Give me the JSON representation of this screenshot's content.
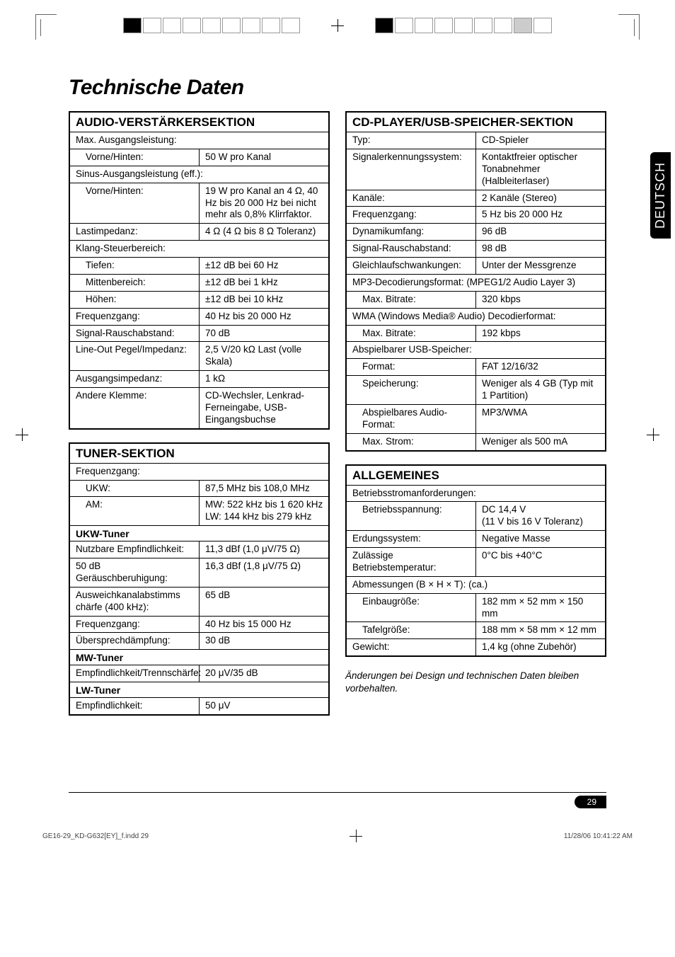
{
  "title": "Technische Daten",
  "side_tab": "DEUTSCH",
  "page_number": "29",
  "print_footer_left": "GE16-29_KD-G632[EY]_f.indd   29",
  "print_footer_right": "11/28/06   10:41:22 AM",
  "footnote": "Änderungen bei Design und technischen Daten bleiben vorbehalten.",
  "audio": {
    "header": "AUDIO-VERSTÄRKERSEKTION",
    "rows": [
      {
        "full": "Max. Ausgangsleistung:"
      },
      {
        "l": "Vorne/Hinten:",
        "v": "50 W pro Kanal",
        "indent": true
      },
      {
        "full": "Sinus-Ausgangsleistung (eff.):"
      },
      {
        "l": "Vorne/Hinten:",
        "v": "19 W pro Kanal an 4 Ω, 40 Hz bis 20 000 Hz bei nicht mehr als 0,8% Klirrfaktor.",
        "indent": true
      },
      {
        "l": "Lastimpedanz:",
        "v": "4 Ω (4 Ω bis 8 Ω Toleranz)"
      },
      {
        "full": "Klang-Steuerbereich:"
      },
      {
        "l": "Tiefen:",
        "v": "±12 dB bei 60 Hz",
        "indent": true
      },
      {
        "l": "Mittenbereich:",
        "v": "±12 dB bei 1 kHz",
        "indent": true
      },
      {
        "l": "Höhen:",
        "v": "±12 dB bei 10 kHz",
        "indent": true
      },
      {
        "l": "Frequenzgang:",
        "v": "40 Hz bis 20 000 Hz"
      },
      {
        "l": "Signal-Rauschabstand:",
        "v": "70 dB"
      },
      {
        "l": "Line-Out Pegel/Impedanz:",
        "v": "2,5 V/20 kΩ Last (volle Skala)"
      },
      {
        "l": "Ausgangsimpedanz:",
        "v": "1 kΩ"
      },
      {
        "l": "Andere Klemme:",
        "v": "CD-Wechsler, Lenkrad-Ferneingabe, USB-Eingangsbuchse"
      }
    ]
  },
  "tuner": {
    "header": "TUNER-SEKTION",
    "r1": {
      "full": "Frequenzgang:"
    },
    "r2": {
      "l": "UKW:",
      "v": "87,5 MHz bis 108,0 MHz"
    },
    "r3": {
      "l": "AM:",
      "v": "MW: 522 kHz bis 1 620 kHz\nLW: 144 kHz bis 279 kHz"
    },
    "sub1": "UKW-Tuner",
    "r4": {
      "l": "Nutzbare Empfindlichkeit:",
      "v": "11,3 dBf (1,0 μV/75 Ω)"
    },
    "r5": {
      "l": "50 dB Geräuschberuhigung:",
      "v": "16,3 dBf (1,8 μV/75 Ω)"
    },
    "r6": {
      "l": "Ausweichkanalabstimms chärfe (400 kHz):",
      "v": "65 dB"
    },
    "r7": {
      "l": "Frequenzgang:",
      "v": "40 Hz bis 15 000 Hz"
    },
    "r8": {
      "l": "Übersprechdämpfung:",
      "v": "30 dB"
    },
    "sub2": "MW-Tuner",
    "r9": {
      "l": "Empfindlichkeit/Trennschärfe:",
      "v": "20 μV/35 dB"
    },
    "sub3": "LW-Tuner",
    "r10": {
      "l": "Empfindlichkeit:",
      "v": "50 μV"
    }
  },
  "cd": {
    "header": "CD-PLAYER/USB-SPEICHER-SEKTION",
    "rows": [
      {
        "l": "Typ:",
        "v": "CD-Spieler"
      },
      {
        "l": "Signalerkennungssystem:",
        "v": "Kontaktfreier optischer Tonabnehmer (Halbleiterlaser)"
      },
      {
        "l": "Kanäle:",
        "v": "2 Kanäle (Stereo)"
      },
      {
        "l": "Frequenzgang:",
        "v": "5 Hz bis 20 000 Hz"
      },
      {
        "l": "Dynamikumfang:",
        "v": "96 dB"
      },
      {
        "l": "Signal-Rauschabstand:",
        "v": "98 dB"
      },
      {
        "l": "Gleichlaufschwankungen:",
        "v": "Unter der Messgrenze"
      },
      {
        "full": "MP3-Decodierungsformat: (MPEG1/2 Audio Layer 3)"
      },
      {
        "l": "Max. Bitrate:",
        "v": "320 kbps",
        "indent": true
      },
      {
        "full": "WMA (Windows Media® Audio) Decodierformat:"
      },
      {
        "l": "Max. Bitrate:",
        "v": "192 kbps",
        "indent": true
      },
      {
        "full": "Abspielbarer USB-Speicher:"
      },
      {
        "l": "Format:",
        "v": "FAT 12/16/32",
        "indent": true
      },
      {
        "l": "Speicherung:",
        "v": "Weniger als 4 GB (Typ mit 1 Partition)",
        "indent": true
      },
      {
        "l": "Abspielbares Audio-Format:",
        "v": "MP3/WMA",
        "indent": true
      },
      {
        "l": "Max. Strom:",
        "v": "Weniger als 500 mA",
        "indent": true
      }
    ]
  },
  "general": {
    "header": "ALLGEMEINES",
    "rows": [
      {
        "full": "Betriebsstromanforderungen:"
      },
      {
        "l": "Betriebsspannung:",
        "v": "DC 14,4 V\n(11 V bis 16 V Toleranz)",
        "indent": true
      },
      {
        "l": "Erdungssystem:",
        "v": "Negative Masse"
      },
      {
        "l": "Zulässige Betriebstemperatur:",
        "v": "0°C bis +40°C"
      },
      {
        "full": "Abmessungen (B × H × T): (ca.)"
      },
      {
        "l": "Einbaugröße:",
        "v": "182 mm × 52 mm × 150 mm",
        "indent": true
      },
      {
        "l": "Tafelgröße:",
        "v": "188 mm × 58 mm × 12 mm",
        "indent": true
      },
      {
        "l": "Gewicht:",
        "v": "1,4 kg (ohne Zubehör)"
      }
    ]
  }
}
